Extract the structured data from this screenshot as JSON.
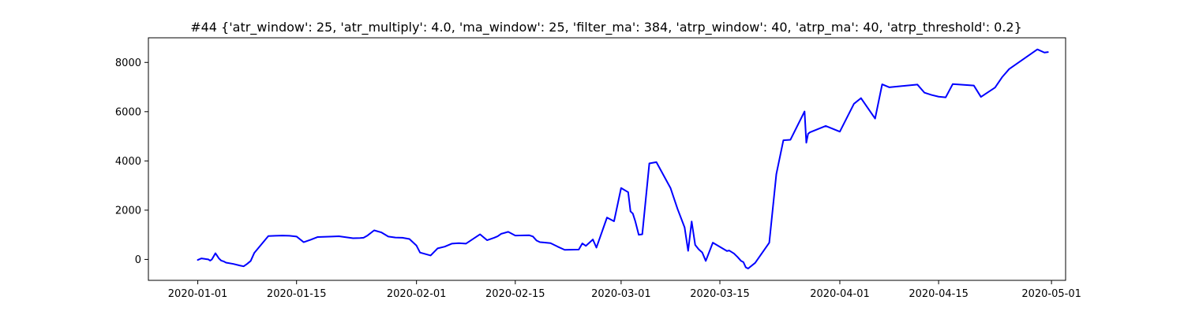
{
  "chart_data": {
    "type": "line",
    "title": "#44 {'atr_window': 25, 'atr_multiply': 4.0, 'ma_window': 25, 'filter_ma': 384, 'atrp_window': 40, 'atrp_ma': 40, 'atrp_threshold': 0.2}",
    "xlabel": "",
    "ylabel": "",
    "x_ticks": [
      "2020-01-01",
      "2020-01-15",
      "2020-02-01",
      "2020-02-15",
      "2020-03-01",
      "2020-03-15",
      "2020-04-01",
      "2020-04-15",
      "2020-05-01"
    ],
    "y_ticks": [
      0,
      2000,
      4000,
      6000,
      8000
    ],
    "xlim": [
      "2019-12-25",
      "2020-05-03"
    ],
    "ylim": [
      -850,
      9000
    ],
    "grid": false,
    "series": [
      {
        "color": "#0000ff",
        "x": [
          "2020-01-01",
          "2020-01-01",
          "2020-01-02",
          "2020-01-02",
          "2020-01-02",
          "2020-01-02",
          "2020-01-03",
          "2020-01-03",
          "2020-01-04",
          "2020-01-04",
          "2020-01-04",
          "2020-01-05",
          "2020-01-06",
          "2020-01-07",
          "2020-01-07",
          "2020-01-08",
          "2020-01-08",
          "2020-01-09",
          "2020-01-11",
          "2020-01-12",
          "2020-01-13",
          "2020-01-14",
          "2020-01-15",
          "2020-01-16",
          "2020-01-17",
          "2020-01-18",
          "2020-01-20",
          "2020-01-21",
          "2020-01-22",
          "2020-01-23",
          "2020-01-24",
          "2020-01-24",
          "2020-01-25",
          "2020-01-26",
          "2020-01-27",
          "2020-01-28",
          "2020-01-29",
          "2020-01-30",
          "2020-01-31",
          "2020-02-01",
          "2020-02-01",
          "2020-02-03",
          "2020-02-04",
          "2020-02-05",
          "2020-02-06",
          "2020-02-07",
          "2020-02-08",
          "2020-02-10",
          "2020-02-11",
          "2020-02-12",
          "2020-02-12",
          "2020-02-13",
          "2020-02-14",
          "2020-02-15",
          "2020-02-17",
          "2020-02-17",
          "2020-02-18",
          "2020-02-18",
          "2020-02-19",
          "2020-02-20",
          "2020-02-21",
          "2020-02-22",
          "2020-02-24",
          "2020-02-24",
          "2020-02-25",
          "2020-02-26",
          "2020-02-26",
          "2020-02-28",
          "2020-02-29",
          "2020-03-01",
          "2020-03-02",
          "2020-03-02",
          "2020-03-02",
          "2020-03-03",
          "2020-03-03",
          "2020-03-04",
          "2020-03-05",
          "2020-03-06",
          "2020-03-08",
          "2020-03-09",
          "2020-03-10",
          "2020-03-10",
          "2020-03-11",
          "2020-03-11",
          "2020-03-12",
          "2020-03-12",
          "2020-03-13",
          "2020-03-14",
          "2020-03-16",
          "2020-03-16",
          "2020-03-16",
          "2020-03-17",
          "2020-03-17",
          "2020-03-18",
          "2020-03-18",
          "2020-03-18",
          "2020-03-19",
          "2020-03-20",
          "2020-03-22",
          "2020-03-23",
          "2020-03-24",
          "2020-03-25",
          "2020-03-27",
          "2020-03-27",
          "2020-03-27",
          "2020-03-27",
          "2020-03-30",
          "2020-04-01",
          "2020-04-03",
          "2020-04-04",
          "2020-04-06",
          "2020-04-07",
          "2020-04-08",
          "2020-04-12",
          "2020-04-13",
          "2020-04-14",
          "2020-04-15",
          "2020-04-16",
          "2020-04-17",
          "2020-04-20",
          "2020-04-21",
          "2020-04-23",
          "2020-04-24",
          "2020-04-25",
          "2020-04-29",
          "2020-04-30",
          "2020-04-30"
        ],
        "y": [
          -20,
          40,
          20,
          10,
          0,
          -50,
          0,
          250,
          40,
          -50,
          -80,
          -130,
          -180,
          -250,
          -280,
          -180,
          -60,
          260,
          950,
          960,
          970,
          960,
          930,
          700,
          800,
          910,
          930,
          940,
          900,
          860,
          870,
          880,
          960,
          1180,
          1100,
          930,
          890,
          880,
          830,
          560,
          280,
          160,
          450,
          520,
          640,
          660,
          640,
          1020,
          780,
          880,
          940,
          1040,
          1120,
          970,
          980,
          930,
          770,
          700,
          690,
          660,
          520,
          390,
          400,
          650,
          550,
          810,
          480,
          1700,
          1550,
          2900,
          2730,
          1950,
          1860,
          1560,
          1000,
          1020,
          3900,
          3950,
          2900,
          2050,
          1300,
          350,
          1540,
          590,
          410,
          280,
          -60,
          680,
          340,
          360,
          300,
          240,
          100,
          -60,
          -110,
          -320,
          -370,
          -140,
          680,
          3460,
          4840,
          4860,
          6010,
          4740,
          5100,
          5160,
          5420,
          5190,
          6320,
          6550,
          5720,
          7110,
          6990,
          7100,
          6770,
          6680,
          6610,
          6580,
          7120,
          7060,
          6600,
          6980,
          7400,
          7730,
          8530,
          8400,
          8420
        ]
      }
    ]
  }
}
